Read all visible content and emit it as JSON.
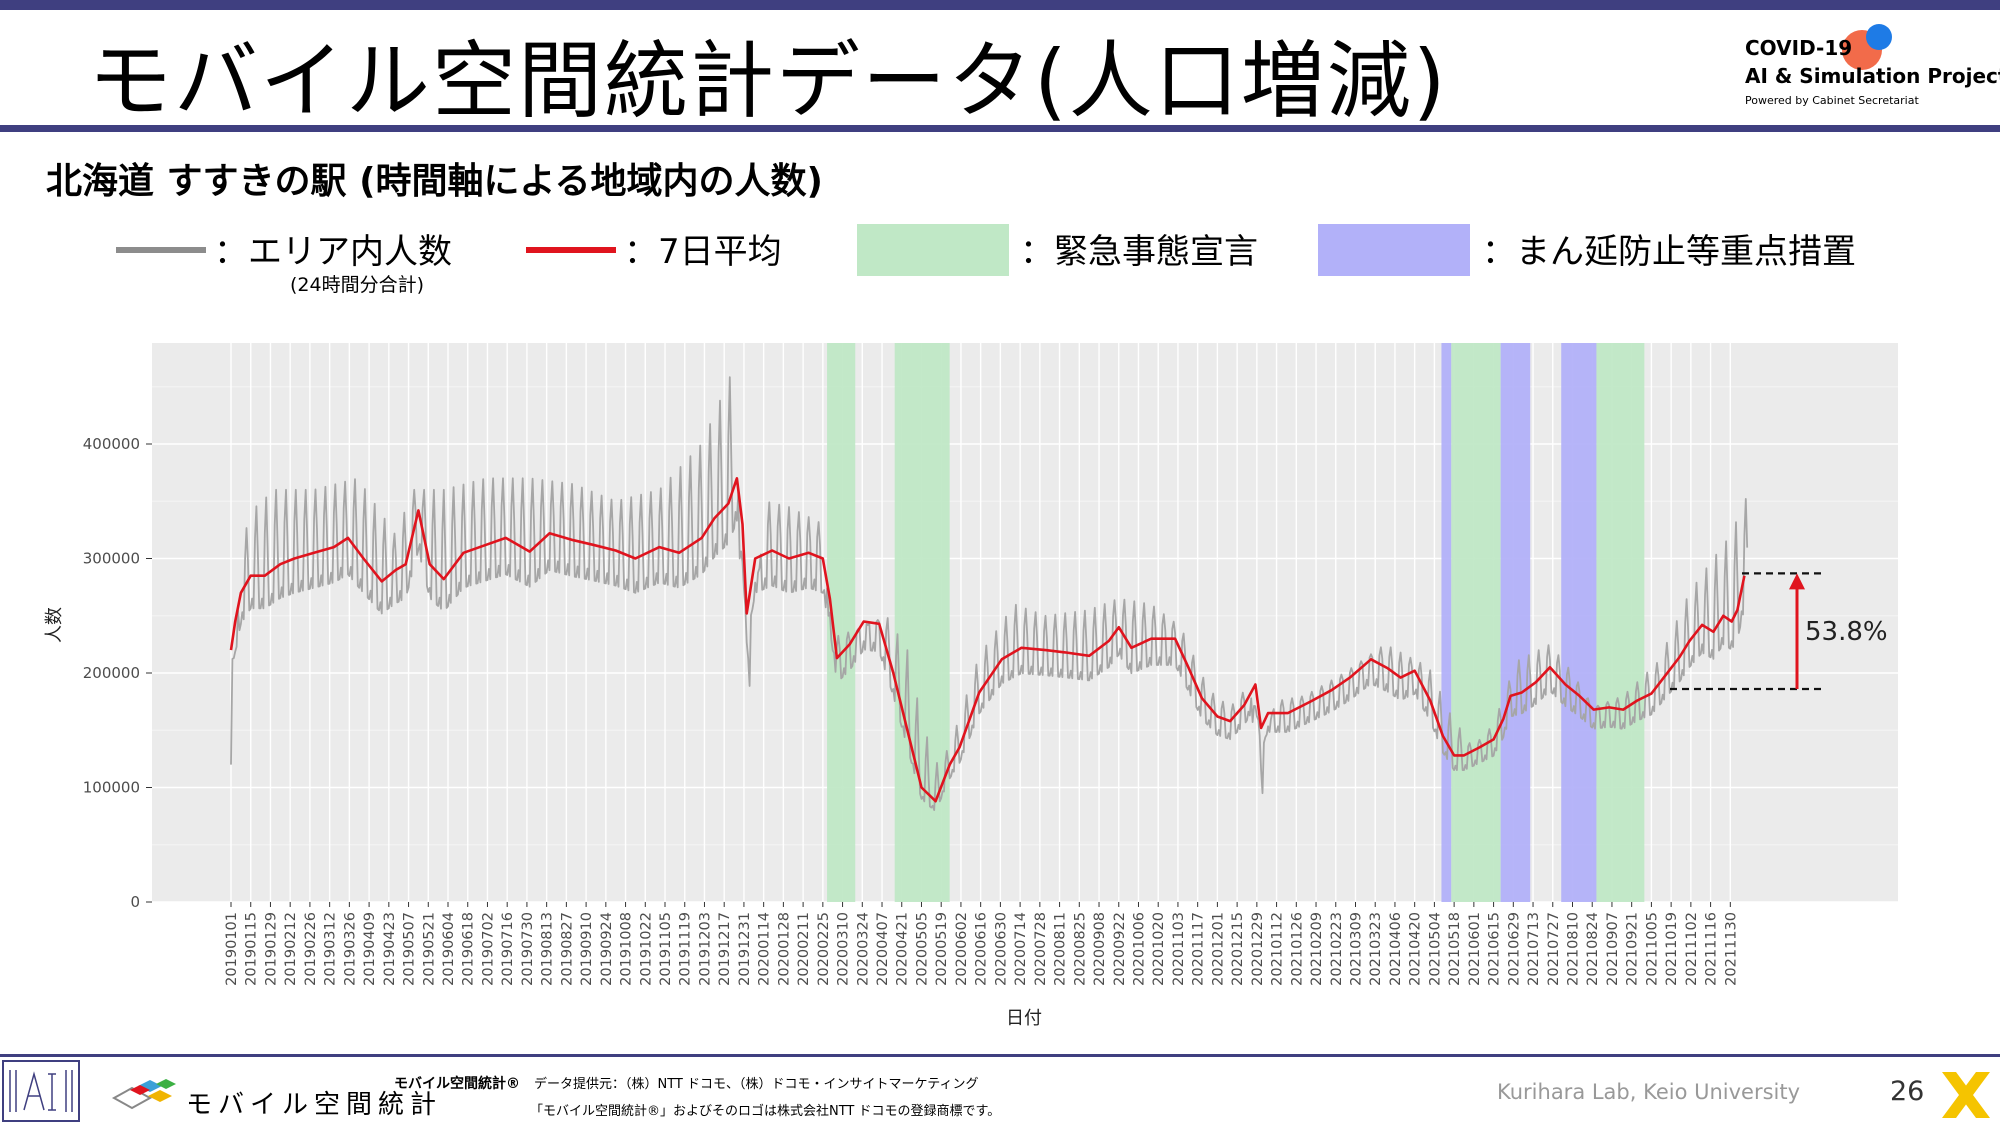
{
  "header": {
    "title": "モバイル空間統計データ(人口増減)",
    "logo": {
      "line1": "COVID-19",
      "line2": "AI & Simulation Project",
      "line3": "Powered by Cabinet Secretariat"
    }
  },
  "subtitle": "北海道 すすきの駅 (時間軸による地域内の人数)",
  "legend": {
    "area_label": "：エリア内人数",
    "area_sub": "(24時間分合計)",
    "avg_label": "：7日平均",
    "emergency_label": "：緊急事態宣言",
    "priority_label": "：まん延防止等重点措置",
    "colors": {
      "raw": "#8c8c8c",
      "avg": "#e0141e",
      "emergency": "#c0e8c6",
      "priority": "#b2b1f9"
    }
  },
  "chart_data": {
    "type": "line",
    "xlabel": "日付",
    "ylabel": "人数",
    "ylim": [
      0,
      460000
    ],
    "yticks": [
      0,
      100000,
      200000,
      300000,
      400000
    ],
    "ytick_labels": [
      "0",
      "100000",
      "200000",
      "300000",
      "400000"
    ],
    "xlim": [
      "2019-01-01",
      "2021-12-31"
    ],
    "xtick_labels": [
      "20190101",
      "20190115",
      "20190129",
      "20190212",
      "20190226",
      "20190312",
      "20190326",
      "20190409",
      "20190423",
      "20190507",
      "20190521",
      "20190604",
      "20190618",
      "20190702",
      "20190716",
      "20190730",
      "20190813",
      "20190827",
      "20190910",
      "20190924",
      "20191008",
      "20191022",
      "20191105",
      "20191119",
      "20191203",
      "20191217",
      "20191231",
      "20200114",
      "20200128",
      "20200211",
      "20200225",
      "20200310",
      "20200324",
      "20200407",
      "20200421",
      "20200505",
      "20200519",
      "20200602",
      "20200616",
      "20200630",
      "20200714",
      "20200728",
      "20200811",
      "20200825",
      "20200908",
      "20200922",
      "20201006",
      "20201020",
      "20201103",
      "20201117",
      "20201201",
      "20201215",
      "20201229",
      "20210112",
      "20210126",
      "20210209",
      "20210223",
      "20210309",
      "20210323",
      "20210406",
      "20210420",
      "20210504",
      "20210518",
      "20210601",
      "20210615",
      "20210629",
      "20210713",
      "20210727",
      "20210810",
      "20210824",
      "20210907",
      "20210921",
      "20211005",
      "20211019",
      "20211102",
      "20211116",
      "20211130"
    ],
    "grid": true,
    "legend": "above chart",
    "series": [
      {
        "name": "エリア内人数",
        "color": "#a6a6a6",
        "pattern": "weekly fluctuation around the 7-day average, weekly peaks about 15-45% above and troughs about 10% below",
        "x": [
          "2019-01-01",
          "2019-01-08",
          "2019-01-14",
          "2019-02-01",
          "2019-03-01",
          "2019-04-01",
          "2019-04-28",
          "2019-05-10",
          "2019-06-01",
          "2019-07-01",
          "2019-08-01",
          "2019-09-01",
          "2019-10-01",
          "2019-11-01",
          "2019-12-01",
          "2019-12-25",
          "2019-12-31",
          "2020-01-15",
          "2020-02-01",
          "2020-02-25",
          "2020-03-01",
          "2020-03-25",
          "2020-04-10",
          "2020-04-25",
          "2020-05-05",
          "2020-05-15",
          "2020-05-25",
          "2020-06-15",
          "2020-07-10",
          "2020-08-01",
          "2020-09-01",
          "2020-09-22",
          "2020-10-15",
          "2020-11-05",
          "2020-11-25",
          "2020-12-10",
          "2020-12-24",
          "2020-12-31",
          "2021-01-10",
          "2021-02-01",
          "2021-03-01",
          "2021-03-30",
          "2021-04-30",
          "2021-05-15",
          "2021-05-31",
          "2021-06-15",
          "2021-07-01",
          "2021-07-25",
          "2021-08-10",
          "2021-08-25",
          "2021-09-15",
          "2021-10-10",
          "2021-11-01",
          "2021-11-15",
          "2021-11-30",
          "2021-12-12"
        ],
        "values": [
          120000,
          300000,
          340000,
          360000,
          360000,
          370000,
          320000,
          360000,
          360000,
          370000,
          370000,
          365000,
          350000,
          360000,
          400000,
          470000,
          130000,
          350000,
          345000,
          330000,
          230000,
          240000,
          250000,
          220000,
          160000,
          120000,
          135000,
          215000,
          260000,
          250000,
          255000,
          265000,
          260000,
          240000,
          185000,
          170000,
          190000,
          75000,
          175000,
          180000,
          200000,
          225000,
          205000,
          165000,
          135000,
          155000,
          210000,
          225000,
          200000,
          170000,
          180000,
          210000,
          270000,
          295000,
          320000,
          355000
        ]
      },
      {
        "name": "7日平均",
        "color": "#e0141e",
        "x": [
          "2019-01-01",
          "2019-01-04",
          "2019-01-08",
          "2019-01-15",
          "2019-01-25",
          "2019-02-05",
          "2019-02-15",
          "2019-03-01",
          "2019-03-15",
          "2019-03-25",
          "2019-04-05",
          "2019-04-18",
          "2019-04-28",
          "2019-05-05",
          "2019-05-14",
          "2019-05-22",
          "2019-06-01",
          "2019-06-15",
          "2019-07-01",
          "2019-07-15",
          "2019-08-01",
          "2019-08-15",
          "2019-09-01",
          "2019-09-15",
          "2019-10-01",
          "2019-10-15",
          "2019-11-01",
          "2019-11-15",
          "2019-12-01",
          "2019-12-10",
          "2019-12-20",
          "2019-12-26",
          "2019-12-30",
          "2020-01-02",
          "2020-01-08",
          "2020-01-20",
          "2020-02-01",
          "2020-02-15",
          "2020-02-25",
          "2020-03-01",
          "2020-03-06",
          "2020-03-15",
          "2020-03-25",
          "2020-04-05",
          "2020-04-15",
          "2020-04-25",
          "2020-05-05",
          "2020-05-15",
          "2020-05-25",
          "2020-06-01",
          "2020-06-15",
          "2020-07-01",
          "2020-07-15",
          "2020-08-01",
          "2020-08-15",
          "2020-09-01",
          "2020-09-15",
          "2020-09-22",
          "2020-10-01",
          "2020-10-15",
          "2020-11-01",
          "2020-11-10",
          "2020-11-20",
          "2020-12-01",
          "2020-12-10",
          "2020-12-20",
          "2020-12-28",
          "2021-01-01",
          "2021-01-06",
          "2021-01-20",
          "2021-02-05",
          "2021-02-20",
          "2021-03-05",
          "2021-03-20",
          "2021-04-01",
          "2021-04-10",
          "2021-04-20",
          "2021-05-01",
          "2021-05-10",
          "2021-05-18",
          "2021-05-25",
          "2021-06-05",
          "2021-06-15",
          "2021-06-22",
          "2021-06-27",
          "2021-07-05",
          "2021-07-15",
          "2021-07-25",
          "2021-08-05",
          "2021-08-15",
          "2021-08-25",
          "2021-09-05",
          "2021-09-15",
          "2021-09-25",
          "2021-10-05",
          "2021-10-15",
          "2021-10-25",
          "2021-11-01",
          "2021-11-10",
          "2021-11-18",
          "2021-11-25",
          "2021-12-01",
          "2021-12-05",
          "2021-12-10"
        ],
        "values": [
          220000,
          245000,
          270000,
          285000,
          285000,
          295000,
          300000,
          305000,
          310000,
          318000,
          300000,
          280000,
          290000,
          295000,
          342000,
          295000,
          282000,
          305000,
          312000,
          318000,
          306000,
          322000,
          316000,
          312000,
          307000,
          300000,
          310000,
          305000,
          318000,
          335000,
          348000,
          370000,
          330000,
          252000,
          300000,
          307000,
          300000,
          305000,
          300000,
          265000,
          213000,
          225000,
          245000,
          243000,
          200000,
          150000,
          100000,
          88000,
          120000,
          135000,
          183000,
          212000,
          222000,
          220000,
          218000,
          215000,
          228000,
          240000,
          222000,
          230000,
          230000,
          206000,
          178000,
          162000,
          158000,
          172000,
          190000,
          152000,
          165000,
          165000,
          175000,
          185000,
          196000,
          212000,
          204000,
          196000,
          202000,
          176000,
          145000,
          128000,
          128000,
          135000,
          142000,
          160000,
          180000,
          183000,
          192000,
          205000,
          190000,
          180000,
          168000,
          170000,
          168000,
          176000,
          182000,
          198000,
          214000,
          228000,
          242000,
          236000,
          250000,
          245000,
          255000,
          285000
        ]
      }
    ],
    "shaded_periods": [
      {
        "kind": "緊急事態宣言",
        "start": "2020-02-28",
        "end": "2020-03-19"
      },
      {
        "kind": "緊急事態宣言",
        "start": "2020-04-16",
        "end": "2020-05-25"
      },
      {
        "kind": "まん延防止等重点措置",
        "start": "2021-05-09",
        "end": "2021-05-16"
      },
      {
        "kind": "緊急事態宣言",
        "start": "2021-05-16",
        "end": "2021-06-20"
      },
      {
        "kind": "まん延防止等重点措置",
        "start": "2021-06-20",
        "end": "2021-07-11"
      },
      {
        "kind": "まん延防止等重点措置",
        "start": "2021-08-02",
        "end": "2021-08-27"
      },
      {
        "kind": "緊急事態宣言",
        "start": "2021-08-27",
        "end": "2021-09-30"
      }
    ],
    "annotation": {
      "text": "53.8%",
      "from_value": 186000,
      "to_value": 287000
    }
  },
  "footer": {
    "mobile_logo_text": "モバイル空間統計",
    "trademark_title": "モバイル空間統計®",
    "provider": "データ提供元：（株）NTT ドコモ、（株）ドコモ・インサイトマーケティング",
    "trademark_note": "「モバイル空間統計®」およびそのロゴは株式会社NTT ドコモの登録商標です。",
    "lab": "Kurihara Lab, Keio University",
    "page_number": "26"
  }
}
